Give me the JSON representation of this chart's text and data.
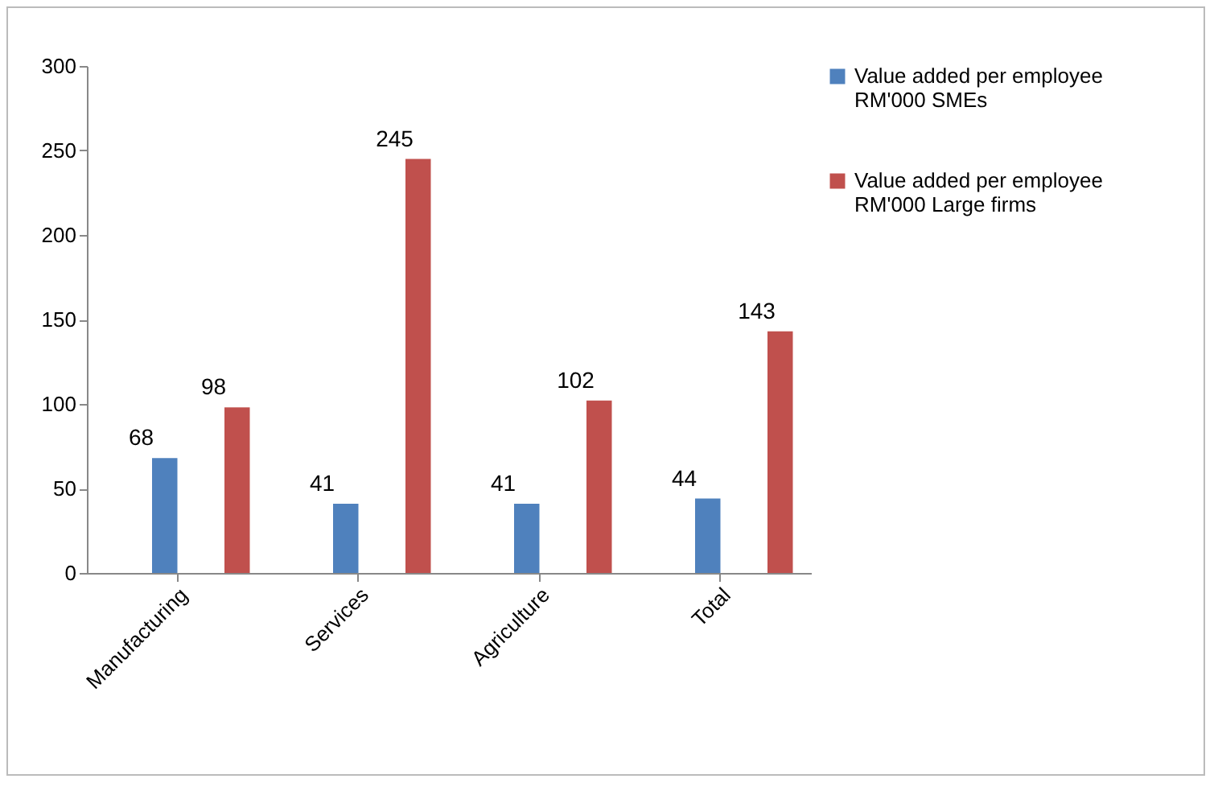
{
  "chart_data": {
    "type": "bar",
    "categories": [
      "Manufacturing",
      "Services",
      "Agriculture",
      "Total"
    ],
    "series": [
      {
        "name": "Value added per employee RM'000 SMEs",
        "color": "#4f81bd",
        "values": [
          68,
          41,
          41,
          44
        ]
      },
      {
        "name": "Value added per employee RM'000 Large firms",
        "color": "#c0504d",
        "values": [
          98,
          245,
          102,
          143
        ]
      }
    ],
    "ylim": [
      0,
      300
    ],
    "yticks": [
      0,
      50,
      100,
      150,
      200,
      250,
      300
    ],
    "grid": false,
    "legend": "right",
    "data_labels": true
  }
}
